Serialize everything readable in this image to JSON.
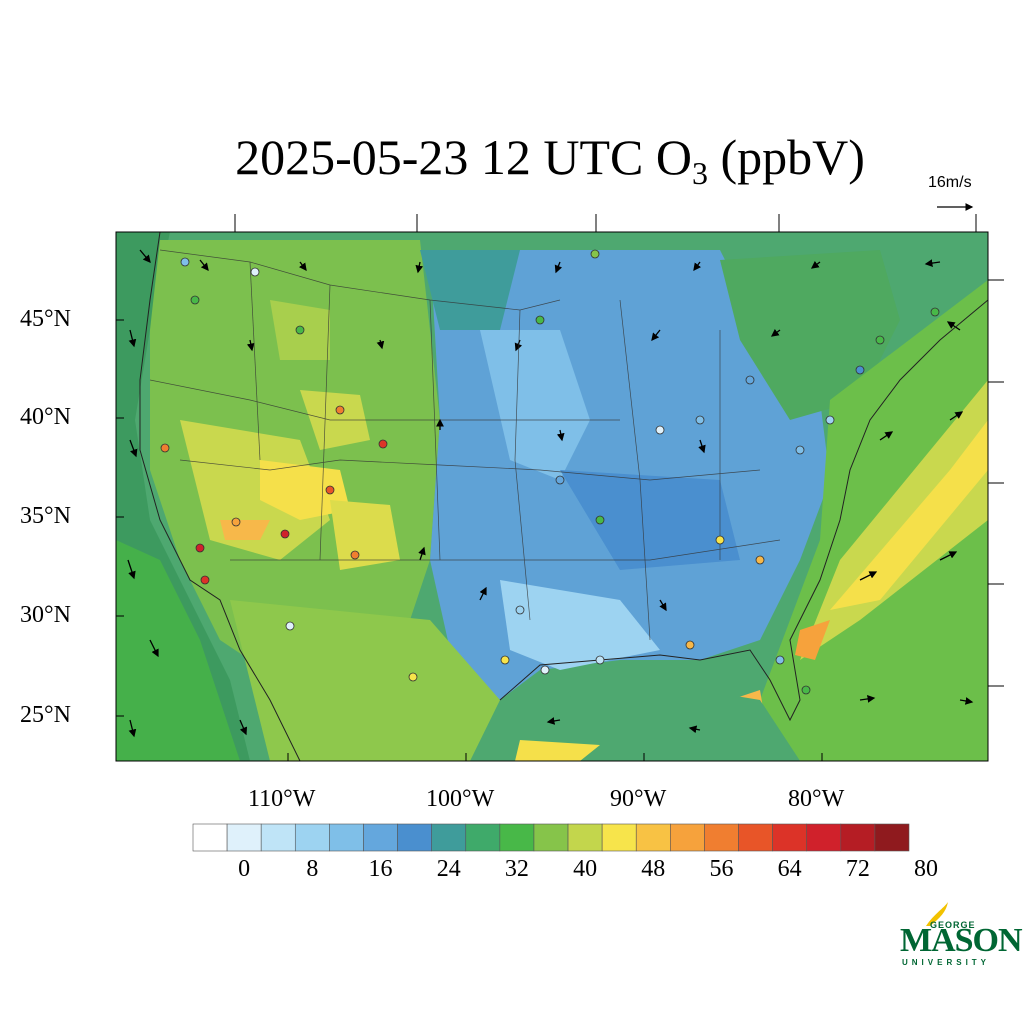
{
  "title": {
    "main": "2025-05-23 12 UTC O",
    "subscript": "3",
    "unit": " (ppbV)"
  },
  "vector_reference": {
    "label": "16m/s"
  },
  "axes": {
    "lat_labels": [
      "45°N",
      "40°N",
      "35°N",
      "30°N",
      "25°N"
    ],
    "lon_labels": [
      "110°W",
      "100°W",
      "90°W",
      "80°W"
    ]
  },
  "colorbar": {
    "colors": [
      "#ffffff",
      "#dff1fb",
      "#bfe4f7",
      "#9dd3f1",
      "#7fbfe8",
      "#64a7dd",
      "#4a8fcf",
      "#3f9c9b",
      "#3faa6a",
      "#48b848",
      "#86c44a",
      "#c3d64c",
      "#f7e44b",
      "#f8c244",
      "#f6a23c",
      "#f07e30",
      "#e85528",
      "#dc3328",
      "#d0212b",
      "#b51d24",
      "#8f1a1e"
    ],
    "tick_labels": [
      "0",
      "8",
      "16",
      "24",
      "32",
      "40",
      "48",
      "56",
      "64",
      "72",
      "80"
    ]
  },
  "logo": {
    "top": "GEORGE",
    "main": "MASON",
    "bottom": "UNIVERSITY",
    "color": "#006633",
    "accent": "#f2c200"
  }
}
